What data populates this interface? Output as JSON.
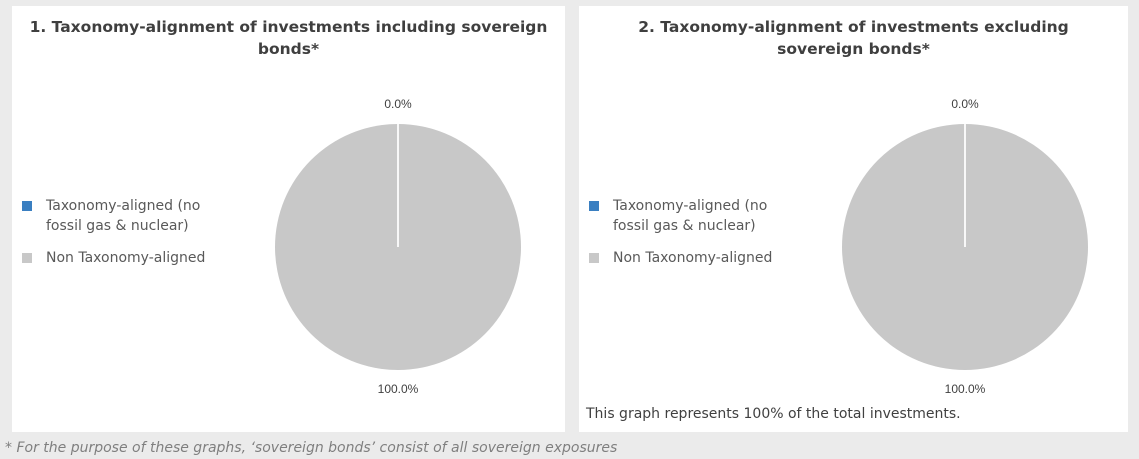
{
  "chart_data": [
    {
      "type": "pie",
      "title": "1. Taxonomy-alignment of investments including sovereign bonds*",
      "categories": [
        "Taxonomy-aligned (no fossil gas & nuclear)",
        "Non Taxonomy-aligned"
      ],
      "values": [
        0.0,
        100.0
      ],
      "data_labels": [
        "0.0%",
        "100.0%"
      ],
      "colors": [
        "#3a7fc1",
        "#c8c8c8"
      ],
      "legend_position": "left"
    },
    {
      "type": "pie",
      "title": "2. Taxonomy-alignment of investments excluding sovereign bonds*",
      "categories": [
        "Taxonomy-aligned (no fossil gas & nuclear)",
        "Non Taxonomy-aligned"
      ],
      "values": [
        0.0,
        100.0
      ],
      "data_labels": [
        "0.0%",
        "100.0%"
      ],
      "colors": [
        "#3a7fc1",
        "#c8c8c8"
      ],
      "legend_position": "left",
      "note": "This graph represents 100% of the total investments."
    }
  ],
  "footnote": "* For the purpose of these graphs, ‘sovereign bonds’ consist of all sovereign exposures"
}
